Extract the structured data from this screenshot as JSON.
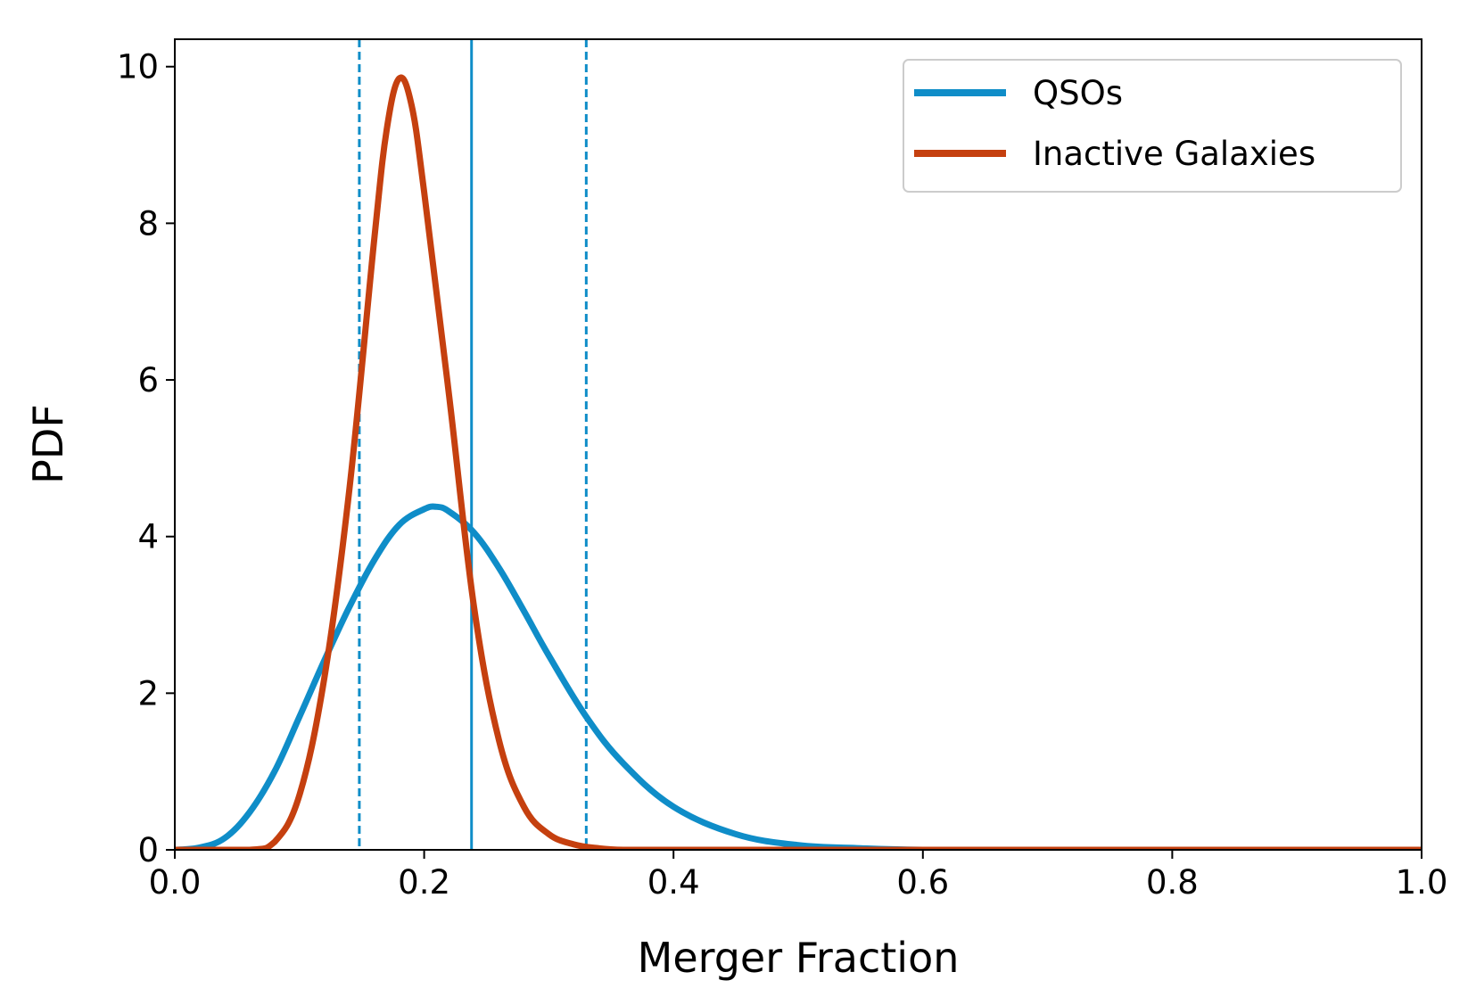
{
  "chart_data": {
    "type": "line",
    "xlabel": "Merger Fraction",
    "ylabel": "PDF",
    "xlim": [
      0.0,
      1.0
    ],
    "ylim": [
      0,
      10.35
    ],
    "xticks": [
      0.0,
      0.2,
      0.4,
      0.6,
      0.8,
      1.0
    ],
    "xtick_labels": [
      "0.0",
      "0.2",
      "0.4",
      "0.6",
      "0.8",
      "1.0"
    ],
    "yticks": [
      0,
      2,
      4,
      6,
      8,
      10
    ],
    "ytick_labels": [
      "0",
      "2",
      "4",
      "6",
      "8",
      "10"
    ],
    "grid": false,
    "legend_position": "top-right",
    "series": [
      {
        "name": "QSOs",
        "color": "#0f8dc8",
        "x": [
          0.0,
          0.02,
          0.04,
          0.06,
          0.08,
          0.1,
          0.12,
          0.14,
          0.16,
          0.18,
          0.2,
          0.21,
          0.22,
          0.24,
          0.26,
          0.28,
          0.3,
          0.33,
          0.36,
          0.4,
          0.45,
          0.5,
          0.55,
          0.6,
          0.7,
          0.8,
          1.0
        ],
        "y": [
          0.0,
          0.03,
          0.15,
          0.48,
          1.0,
          1.7,
          2.42,
          3.1,
          3.7,
          4.15,
          4.35,
          4.38,
          4.32,
          4.05,
          3.6,
          3.05,
          2.48,
          1.7,
          1.1,
          0.55,
          0.2,
          0.06,
          0.02,
          0.0,
          0.0,
          0.0,
          0.0
        ]
      },
      {
        "name": "Inactive Galaxies",
        "color": "#c5400f",
        "x": [
          0.0,
          0.06,
          0.08,
          0.1,
          0.12,
          0.14,
          0.16,
          0.17,
          0.18,
          0.19,
          0.2,
          0.22,
          0.24,
          0.26,
          0.28,
          0.3,
          0.32,
          0.34,
          0.36,
          0.4,
          1.0
        ],
        "y": [
          0.0,
          0.0,
          0.1,
          0.7,
          2.2,
          4.6,
          7.8,
          9.2,
          9.85,
          9.5,
          8.4,
          5.8,
          3.1,
          1.4,
          0.55,
          0.2,
          0.07,
          0.02,
          0.0,
          0.0,
          0.0
        ]
      }
    ],
    "vertical_lines": [
      {
        "x": 0.148,
        "style": "dashed",
        "color": "#0f8dc8"
      },
      {
        "x": 0.238,
        "style": "solid",
        "color": "#0f8dc8"
      },
      {
        "x": 0.33,
        "style": "dashed",
        "color": "#0f8dc8"
      }
    ]
  }
}
